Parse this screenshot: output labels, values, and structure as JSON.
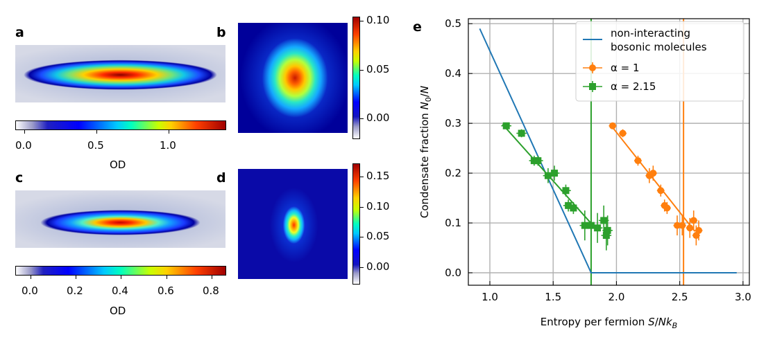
{
  "panels": {
    "a": {
      "label": "a"
    },
    "b": {
      "label": "b"
    },
    "c": {
      "label": "c"
    },
    "d": {
      "label": "d"
    },
    "e": {
      "label": "e"
    }
  },
  "colorbars": {
    "a": {
      "ticks": [
        "0.0",
        "0.5",
        "1.0"
      ],
      "label": "OD"
    },
    "b": {
      "ticks": [
        "0.10",
        "0.05",
        "0.00"
      ]
    },
    "c": {
      "ticks": [
        "0.0",
        "0.2",
        "0.4",
        "0.6",
        "0.8"
      ],
      "label": "OD"
    },
    "d": {
      "ticks": [
        "0.15",
        "0.10",
        "0.05",
        "0.00"
      ]
    }
  },
  "colors": {
    "blue": "#1f77b4",
    "orange": "#ff7f0e",
    "green": "#2ca02c",
    "grid": "#b0b0b0"
  },
  "chart_data": {
    "type": "scatter",
    "title": "",
    "xlabel": "Entropy per fermion S/Nk_B",
    "ylabel": "Condensate fraction N_0/N",
    "xlim": [
      0.83,
      3.05
    ],
    "ylim": [
      -0.025,
      0.51
    ],
    "xticks": [
      1.0,
      1.5,
      2.0,
      2.5,
      3.0
    ],
    "xticklabels": [
      "1.0",
      "1.5",
      "2.0",
      "2.5",
      "3.0"
    ],
    "yticks": [
      0.0,
      0.1,
      0.2,
      0.3,
      0.4,
      0.5
    ],
    "yticklabels": [
      "0.0",
      "0.1",
      "0.2",
      "0.3",
      "0.4",
      "0.5"
    ],
    "grid": true,
    "legend_position": "top-right",
    "legend": [
      "non-interacting",
      "bosonic molecules",
      "α = 1",
      "α = 2.15"
    ],
    "series": [
      {
        "name": "non-interacting bosonic molecules",
        "kind": "line",
        "x": [
          0.92,
          1.8,
          2.95
        ],
        "y": [
          0.49,
          0.0,
          0.0
        ]
      },
      {
        "name": "α = 1",
        "kind": "errorbar",
        "x": [
          1.97,
          2.05,
          2.17,
          2.26,
          2.29,
          2.35,
          2.38,
          2.4,
          2.48,
          2.52,
          2.58,
          2.61,
          2.63,
          2.65
        ],
        "y": [
          0.295,
          0.28,
          0.225,
          0.195,
          0.2,
          0.165,
          0.135,
          0.13,
          0.095,
          0.095,
          0.09,
          0.105,
          0.075,
          0.085
        ],
        "yerr": [
          0.005,
          0.008,
          0.01,
          0.015,
          0.015,
          0.012,
          0.012,
          0.012,
          0.02,
          0.02,
          0.02,
          0.02,
          0.02,
          0.02
        ],
        "xerr": [
          0.03,
          0.03,
          0.03,
          0.03,
          0.03,
          0.03,
          0.03,
          0.03,
          0.03,
          0.03,
          0.03,
          0.03,
          0.03,
          0.03
        ],
        "fit_x": [
          1.95,
          2.62
        ],
        "fit_y": [
          0.298,
          0.083
        ],
        "vline_x": 2.53
      },
      {
        "name": "α = 2.15",
        "kind": "errorbar",
        "x": [
          1.13,
          1.25,
          1.35,
          1.38,
          1.46,
          1.51,
          1.6,
          1.62,
          1.66,
          1.75,
          1.8,
          1.85,
          1.9,
          1.92,
          1.93
        ],
        "y": [
          0.295,
          0.28,
          0.225,
          0.225,
          0.195,
          0.2,
          0.165,
          0.135,
          0.13,
          0.095,
          0.095,
          0.09,
          0.105,
          0.075,
          0.085
        ],
        "yerr": [
          0.005,
          0.008,
          0.01,
          0.01,
          0.015,
          0.015,
          0.012,
          0.012,
          0.012,
          0.03,
          0.03,
          0.03,
          0.03,
          0.03,
          0.03
        ],
        "xerr": [
          0.04,
          0.04,
          0.04,
          0.04,
          0.04,
          0.04,
          0.04,
          0.04,
          0.04,
          0.04,
          0.04,
          0.04,
          0.04,
          0.04,
          0.04
        ],
        "fit_x": [
          1.1,
          1.85
        ],
        "fit_y": [
          0.298,
          0.085
        ],
        "vline_x": 1.8
      }
    ]
  }
}
